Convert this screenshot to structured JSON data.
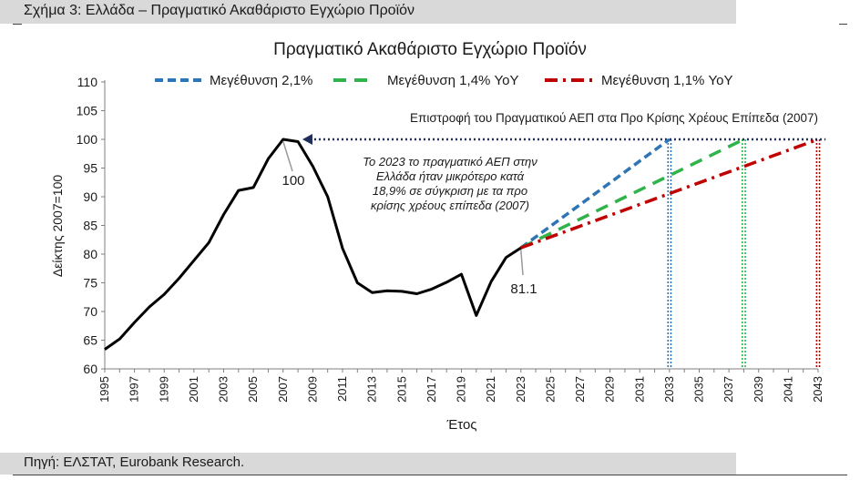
{
  "figure_caption": "Σχήμα 3: Ελλάδα – Πραγματικό Ακαθάριστο Εγχώριο Προϊόν",
  "source_note": "Πηγή: ΕΛΣΤΑΤ, Eurobank Research.",
  "colors": {
    "actual": "#000000",
    "growth_21": "#2e75b6",
    "growth_14": "#2fb34a",
    "growth_11": "#c00000",
    "target_line": "#1f2d5a",
    "band": "#d9d9d9"
  },
  "chart_data": {
    "type": "line",
    "title": "Πραγματικό Ακαθάριστο Εγχώριο Προϊόν",
    "xlabel": "Έτος",
    "ylabel": "Δείκτης 2007=100",
    "xlim": [
      1995,
      2043
    ],
    "ylim": [
      60,
      110
    ],
    "yticks": [
      60,
      65,
      70,
      75,
      80,
      85,
      90,
      95,
      100,
      105,
      110
    ],
    "xticks": [
      "1995",
      "1997",
      "1999",
      "2001",
      "2003",
      "2005",
      "2007",
      "2009",
      "2011",
      "2013",
      "2015",
      "2017",
      "2019",
      "2021",
      "2023",
      "2025",
      "2027",
      "2029",
      "2031",
      "2033",
      "2035",
      "2037",
      "2039",
      "2041",
      "2043"
    ],
    "grid": false,
    "legend_position": "top",
    "series": [
      {
        "x": [
          1995,
          1996,
          1997,
          1998,
          1999,
          2000,
          2001,
          2002,
          2003,
          2004,
          2005,
          2006,
          2007,
          2008,
          2009,
          2010,
          2011,
          2012,
          2013,
          2014,
          2015,
          2016,
          2017,
          2018,
          2019,
          2020,
          2021,
          2022,
          2023
        ],
        "y": [
          63.4,
          65.2,
          68.1,
          70.8,
          73.0,
          75.8,
          78.9,
          82.0,
          86.9,
          91.1,
          91.6,
          96.6,
          100.0,
          99.6,
          95.3,
          90.0,
          81.0,
          75.0,
          73.3,
          73.6,
          73.5,
          73.1,
          73.9,
          75.1,
          76.5,
          69.3,
          75.2,
          79.4,
          81.1
        ]
      },
      {
        "name": "Μεγέθυνση 2,1%",
        "x": [
          2023,
          2033
        ],
        "y": [
          81.1,
          100.0
        ]
      },
      {
        "name": "Μεγέθυνση 1,4% YoY",
        "x": [
          2023,
          2038
        ],
        "y": [
          81.1,
          100.0
        ]
      },
      {
        "name": "Μεγέθυνση 1,1% YoY",
        "x": [
          2023,
          2043
        ],
        "y": [
          81.1,
          100.0
        ]
      }
    ],
    "reference_line": {
      "y": 100,
      "x_start": 2008.3,
      "x_end": 2043.5
    },
    "vertical_markers": [
      2033,
      2038,
      2043
    ],
    "annotations": {
      "target_label": "Επιστροφή του Πραγματικού ΑΕΠ στα Προ Κρίσης Χρέους Επίπεδα (2007)",
      "peak_label": "100",
      "latest_label": "81.1",
      "note_lines": [
        "Το 2023 το πραγματικό ΑΕΠ στην",
        "Ελλάδα ήταν μικρότερο κατά",
        "18,9% σε σύγκριση με τα προ",
        "κρίσης χρέους επίπεδα (2007)"
      ]
    }
  }
}
